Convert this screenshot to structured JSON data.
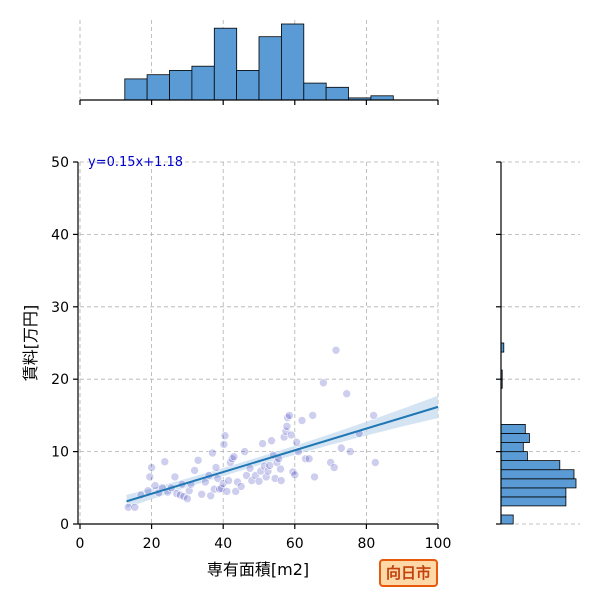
{
  "chart_data": {
    "type": "scatter",
    "xlabel": "専有面積[m2]",
    "ylabel": "賃料[万円]",
    "xlim": [
      0,
      100
    ],
    "ylim": [
      0,
      50
    ],
    "xticks": [
      "0",
      "20",
      "40",
      "60",
      "80",
      "100"
    ],
    "yticks": [
      "0",
      "10",
      "20",
      "30",
      "40",
      "50"
    ],
    "grid": true,
    "equation_label": "y=0.15x+1.18",
    "regression": {
      "slope": 0.15,
      "intercept": 1.18,
      "x_range": [
        13,
        100
      ]
    },
    "points": [
      [
        13.5,
        2.3
      ],
      [
        15.3,
        2.3
      ],
      [
        17,
        4
      ],
      [
        19,
        4.6
      ],
      [
        19.5,
        6.5
      ],
      [
        20,
        7.8
      ],
      [
        21,
        5.3
      ],
      [
        22,
        4.3
      ],
      [
        23,
        5
      ],
      [
        23.7,
        8.6
      ],
      [
        24.5,
        4.4
      ],
      [
        25.5,
        5
      ],
      [
        26.5,
        6.5
      ],
      [
        27,
        4.2
      ],
      [
        28,
        4
      ],
      [
        28.5,
        5.5
      ],
      [
        29,
        3.8
      ],
      [
        30,
        3.5
      ],
      [
        30.5,
        4.6
      ],
      [
        31,
        5.5
      ],
      [
        32,
        7.4
      ],
      [
        33,
        8.8
      ],
      [
        34,
        4.1
      ],
      [
        35,
        5.8
      ],
      [
        36,
        6.7
      ],
      [
        36.5,
        3.9
      ],
      [
        37,
        9.8
      ],
      [
        37.5,
        4.8
      ],
      [
        38,
        7.8
      ],
      [
        38.5,
        6.3
      ],
      [
        39,
        4.8
      ],
      [
        39.5,
        4.9
      ],
      [
        40,
        5.6
      ],
      [
        40.2,
        11
      ],
      [
        40.5,
        12.2
      ],
      [
        41,
        4.5
      ],
      [
        41.5,
        6
      ],
      [
        42,
        8.5
      ],
      [
        42.5,
        9
      ],
      [
        43,
        9.3
      ],
      [
        43.5,
        4.5
      ],
      [
        44,
        5.8
      ],
      [
        45,
        5.2
      ],
      [
        46,
        10
      ],
      [
        46.5,
        6.7
      ],
      [
        47.5,
        7.7
      ],
      [
        48,
        6
      ],
      [
        49,
        6.7
      ],
      [
        50,
        5.9
      ],
      [
        50.5,
        7.3
      ],
      [
        51,
        11.1
      ],
      [
        51.5,
        8
      ],
      [
        52,
        6.5
      ],
      [
        52.5,
        7.3
      ],
      [
        53,
        8.1
      ],
      [
        53.5,
        11.5
      ],
      [
        54,
        9.5
      ],
      [
        54.5,
        6.3
      ],
      [
        55,
        8.5
      ],
      [
        55.5,
        9
      ],
      [
        56,
        7.6
      ],
      [
        56.2,
        6
      ],
      [
        57,
        12
      ],
      [
        57.5,
        12.8
      ],
      [
        57.8,
        13.5
      ],
      [
        58,
        14.7
      ],
      [
        58.5,
        15
      ],
      [
        59,
        12.3
      ],
      [
        59.5,
        7.2
      ],
      [
        60,
        6.8
      ],
      [
        60.5,
        11.3
      ],
      [
        61,
        10
      ],
      [
        62,
        14.3
      ],
      [
        63,
        9
      ],
      [
        64,
        9
      ],
      [
        65,
        15
      ],
      [
        65.5,
        6.5
      ],
      [
        68,
        19.5
      ],
      [
        70,
        8.5
      ],
      [
        71,
        7.8
      ],
      [
        71.5,
        24
      ],
      [
        73,
        10.5
      ],
      [
        74.5,
        18
      ],
      [
        75.5,
        10
      ],
      [
        82,
        15
      ],
      [
        82.5,
        8.5
      ],
      [
        78,
        12.5
      ]
    ],
    "x_hist": {
      "bin_edges": [
        0,
        6.25,
        12.5,
        18.75,
        25,
        31.25,
        37.5,
        43.75,
        50,
        56.25,
        62.5,
        68.75,
        75,
        81.25,
        87.5,
        93.75,
        100
      ],
      "counts": [
        0,
        0,
        5,
        6,
        7,
        8,
        17,
        7,
        15,
        18,
        4,
        3,
        0.5,
        1,
        0,
        0
      ]
    },
    "y_hist": {
      "bin_edges": [
        0,
        1.25,
        2.5,
        3.75,
        5,
        6.25,
        7.5,
        8.75,
        10,
        11.25,
        12.5,
        13.75,
        15,
        16.25,
        17.5,
        18.75,
        20,
        21.25,
        22.5,
        23.75,
        25
      ],
      "counts": [
        3,
        0,
        16,
        16,
        18.5,
        18,
        14.5,
        6.5,
        5.5,
        7,
        6,
        0,
        0,
        0,
        0,
        0.3,
        0.3,
        0,
        0,
        0.7
      ]
    },
    "colors": {
      "point": "#1f1fb4",
      "regression_line": "#1f77b4",
      "confidence_band": "#c6dbef",
      "histogram_fill": "#5b9bd5",
      "equation_text": "#0000cc"
    }
  },
  "badge": {
    "label": "向日市",
    "bg": "#ffd8a8",
    "border": "#e8590c",
    "text": "#c2410c"
  }
}
